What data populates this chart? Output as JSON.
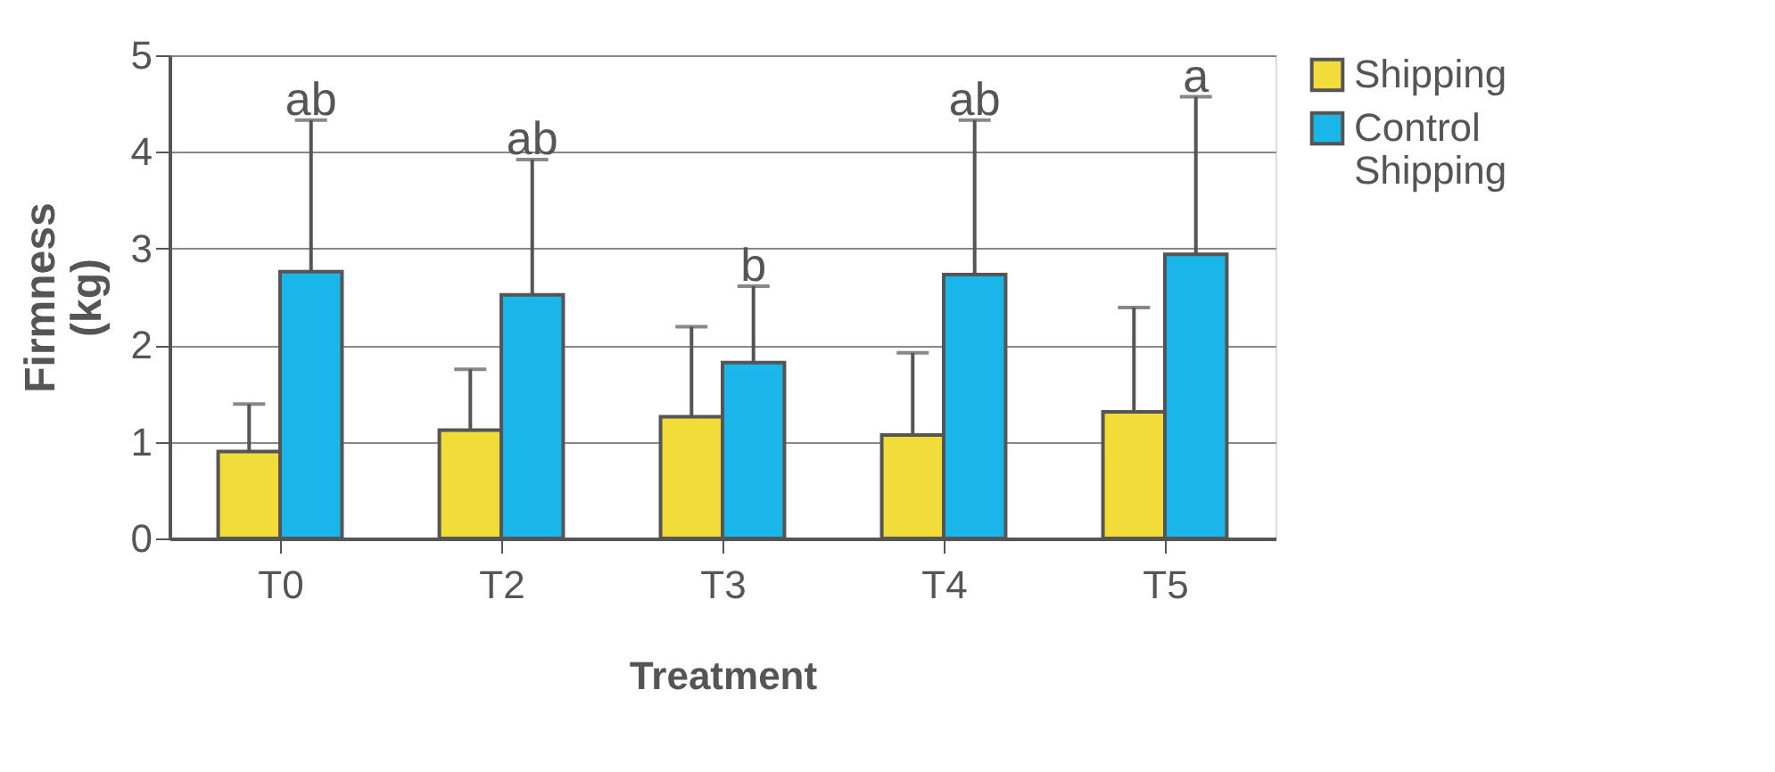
{
  "chart_data": {
    "type": "bar",
    "xlabel": "Treatment",
    "ylabel": "Firmness (kg)",
    "categories": [
      "T0",
      "T2",
      "T3",
      "T4",
      "T5"
    ],
    "series": [
      {
        "name": "Shipping",
        "color": "#f2dc3a",
        "values": [
          0.9,
          1.12,
          1.26,
          1.07,
          1.31
        ],
        "errors": [
          [
            0.9,
            1.39
          ],
          [
            1.12,
            1.75
          ],
          [
            1.26,
            2.19
          ],
          [
            1.07,
            1.92
          ],
          [
            1.31,
            2.39
          ]
        ]
      },
      {
        "name": "Control Shipping",
        "color": "#1ab6ea",
        "values": [
          2.76,
          2.52,
          1.82,
          2.73,
          2.94
        ],
        "errors": [
          [
            2.76,
            4.33
          ],
          [
            2.52,
            3.92
          ],
          [
            1.82,
            2.61
          ],
          [
            2.73,
            4.33
          ],
          [
            2.94,
            4.57
          ]
        ]
      }
    ],
    "ylim": [
      0,
      5
    ],
    "yticks": [
      0,
      1,
      2,
      3,
      4,
      5
    ],
    "grid": "y",
    "legend": "top right",
    "annotations": [
      "ab",
      "ab",
      "b",
      "ab",
      "a"
    ]
  }
}
